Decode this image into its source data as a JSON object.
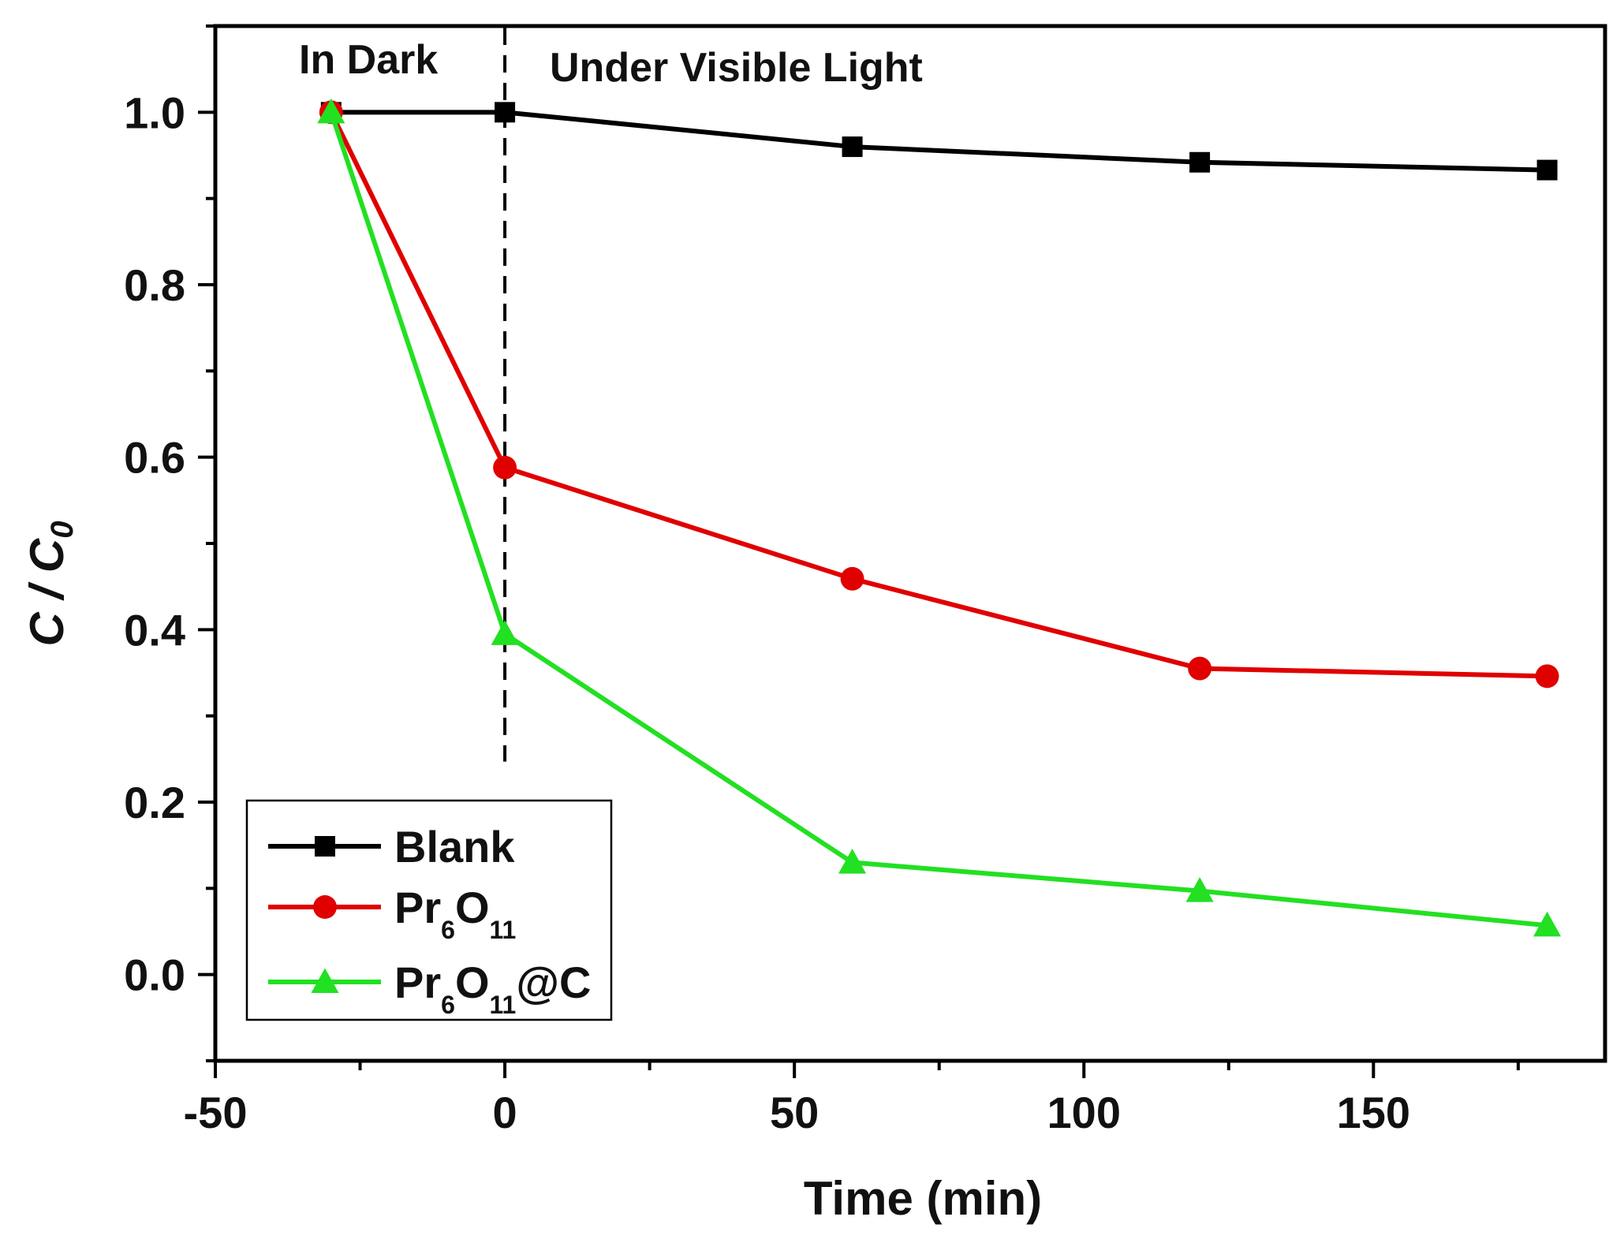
{
  "chart_data": {
    "type": "line",
    "title": "",
    "xlabel": "Time (min)",
    "ylabel": {
      "main": "C / C",
      "sub": "0"
    },
    "xlim": [
      -50,
      190
    ],
    "ylim": [
      -0.1,
      1.1
    ],
    "xticks": [
      -50,
      0,
      50,
      100,
      150
    ],
    "xtick_labels": [
      "-50",
      "0",
      "50",
      "100",
      "150"
    ],
    "yticks": [
      0.0,
      0.2,
      0.4,
      0.6,
      0.8,
      1.0
    ],
    "ytick_labels": [
      "0.0",
      "0.2",
      "0.4",
      "0.6",
      "0.8",
      "1.0"
    ],
    "grid": false,
    "legend_position": "bottom-left",
    "annotations": {
      "in_dark": "In Dark",
      "visible_light": "Under Visible Light",
      "divider_x": 0
    },
    "x": [
      -30,
      0,
      60,
      120,
      180
    ],
    "series": [
      {
        "name": "Blank",
        "legend": {
          "main": "Blank",
          "parts": []
        },
        "color": "#000000",
        "marker": "square",
        "values": [
          1.0,
          1.0,
          0.96,
          0.942,
          0.933
        ]
      },
      {
        "name": "Pr6O11",
        "legend": {
          "main": "Pr",
          "parts": [
            [
              "6",
              "O"
            ],
            [
              "11",
              ""
            ]
          ]
        },
        "color": "#e00000",
        "marker": "circle",
        "values": [
          1.0,
          0.588,
          0.459,
          0.355,
          0.346
        ]
      },
      {
        "name": "Pr6O11@C",
        "legend": {
          "main": "Pr",
          "parts": [
            [
              "6",
              "O"
            ],
            [
              "11",
              "@C"
            ]
          ]
        },
        "color": "#22e022",
        "marker": "triangle",
        "values": [
          1.0,
          0.395,
          0.13,
          0.097,
          0.057
        ]
      }
    ]
  }
}
